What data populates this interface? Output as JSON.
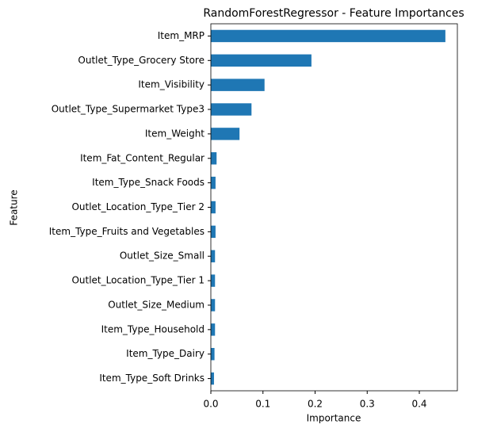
{
  "chart_data": {
    "type": "barh",
    "title": "RandomForestRegressor - Feature Importances",
    "x_label": "Importance",
    "y_label": "Feature",
    "categories": [
      "Item_MRP",
      "Outlet_Type_Grocery Store",
      "Item_Visibility",
      "Outlet_Type_Supermarket Type3",
      "Item_Weight",
      "Item_Fat_Content_Regular",
      "Item_Type_Snack Foods",
      "Outlet_Location_Type_Tier 2",
      "Item_Type_Fruits and Vegetables",
      "Outlet_Size_Small",
      "Outlet_Location_Type_Tier 1",
      "Outlet_Size_Medium",
      "Item_Type_Household",
      "Item_Type_Dairy",
      "Item_Type_Soft Drinks"
    ],
    "values": [
      0.45,
      0.193,
      0.103,
      0.078,
      0.055,
      0.011,
      0.009,
      0.009,
      0.009,
      0.008,
      0.008,
      0.008,
      0.008,
      0.007,
      0.006
    ],
    "color": "#1f77b4",
    "xlim": [
      0,
      0.473
    ],
    "xticks": [
      {
        "value": 0,
        "label": "0.0"
      },
      0.1,
      0.2,
      0.3,
      0.4
    ]
  }
}
